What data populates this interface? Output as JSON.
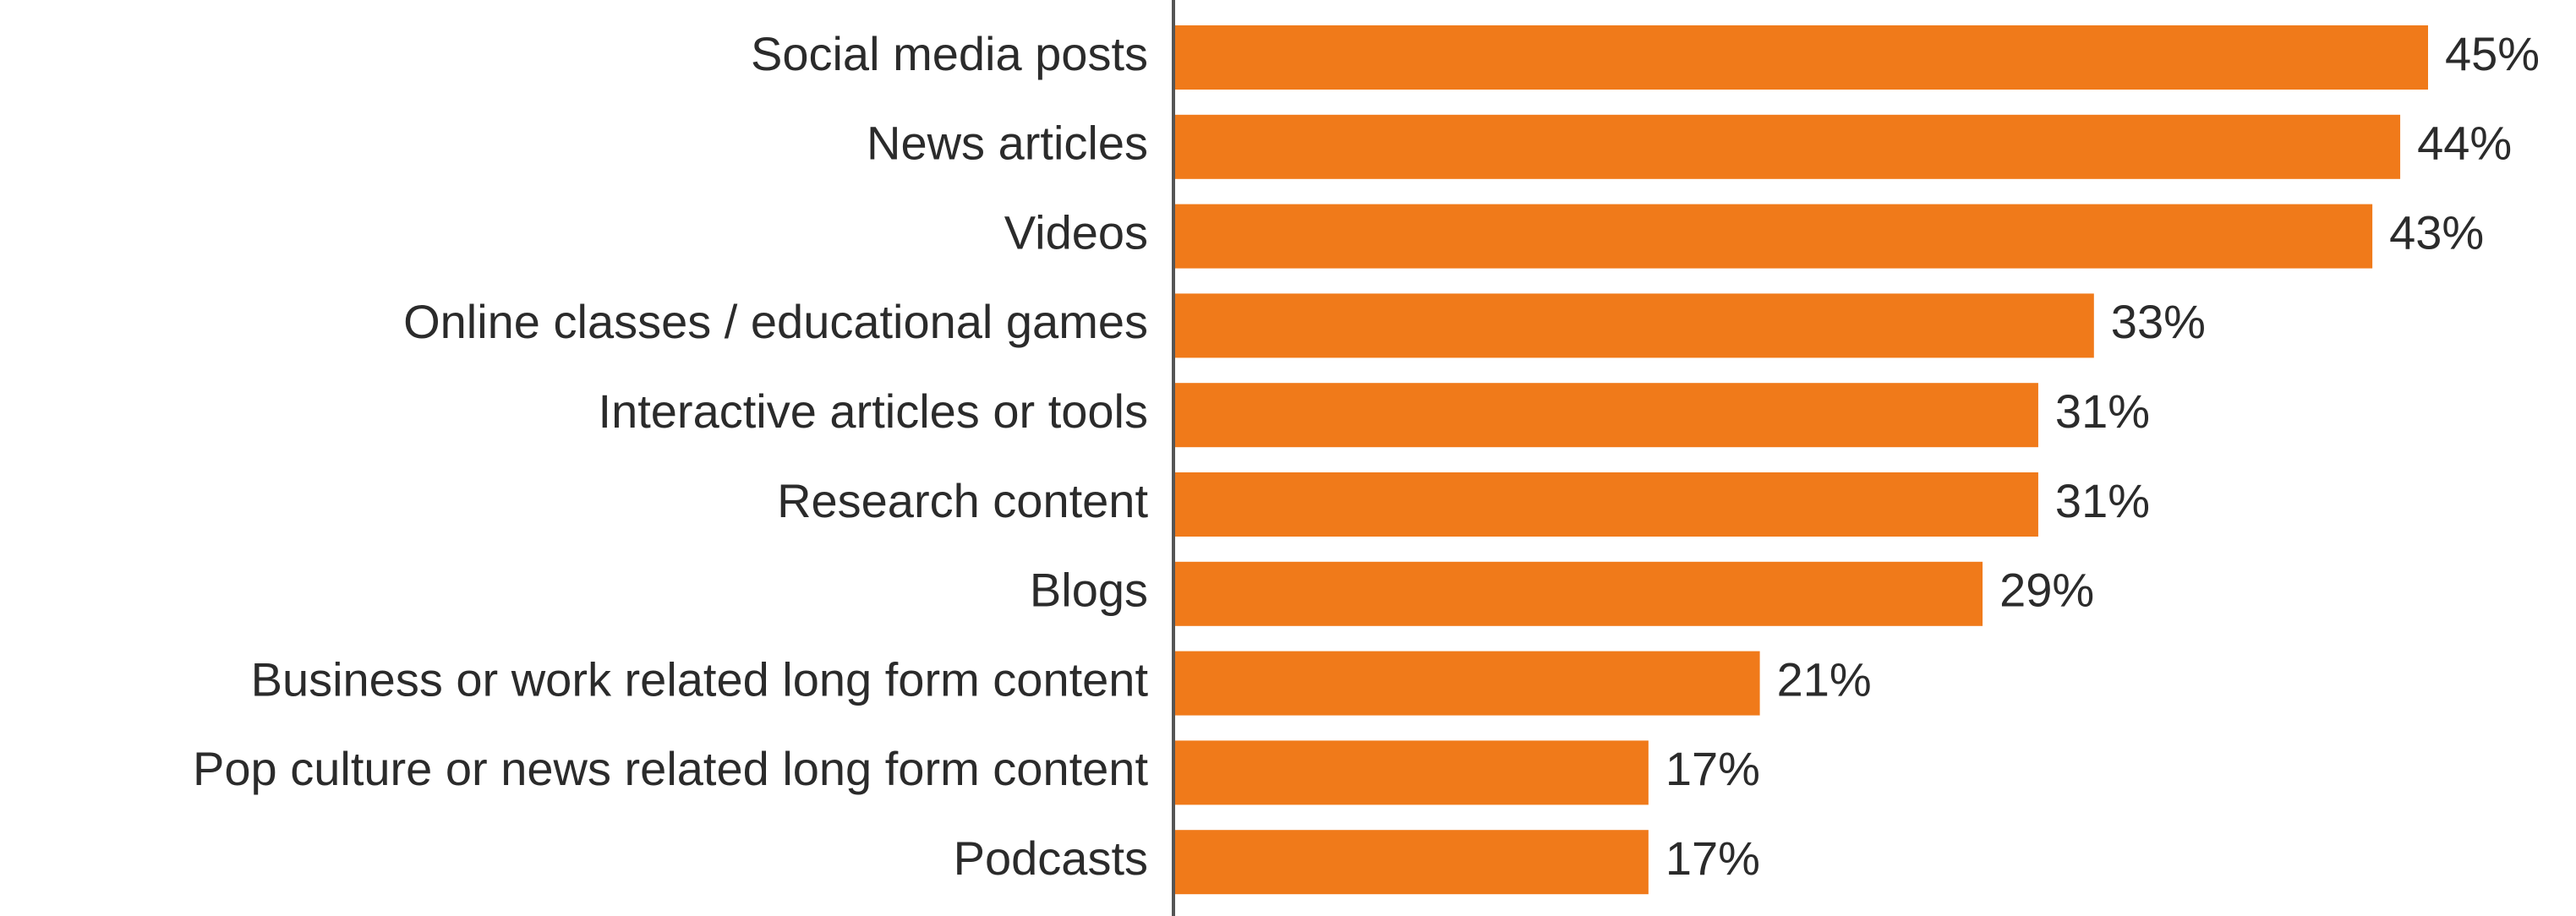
{
  "chart_data": {
    "type": "bar",
    "orientation": "horizontal",
    "categories": [
      "Social media posts",
      "News articles",
      "Videos",
      "Online classes / educational games",
      "Interactive articles or tools",
      "Research content",
      "Blogs",
      "Business or work related long form content",
      "Pop culture or news related long form content",
      "Podcasts"
    ],
    "values": [
      45,
      44,
      43,
      33,
      31,
      31,
      29,
      21,
      17,
      17
    ],
    "value_labels": [
      "45%",
      "44%",
      "43%",
      "33%",
      "31%",
      "31%",
      "29%",
      "21%",
      "17%",
      "17%"
    ],
    "xlim": [
      0,
      45
    ],
    "grid": false,
    "legend": "none",
    "bar_color": "#f07a1a",
    "axis_color": "#555555",
    "text_color": "#2b2b2b"
  }
}
